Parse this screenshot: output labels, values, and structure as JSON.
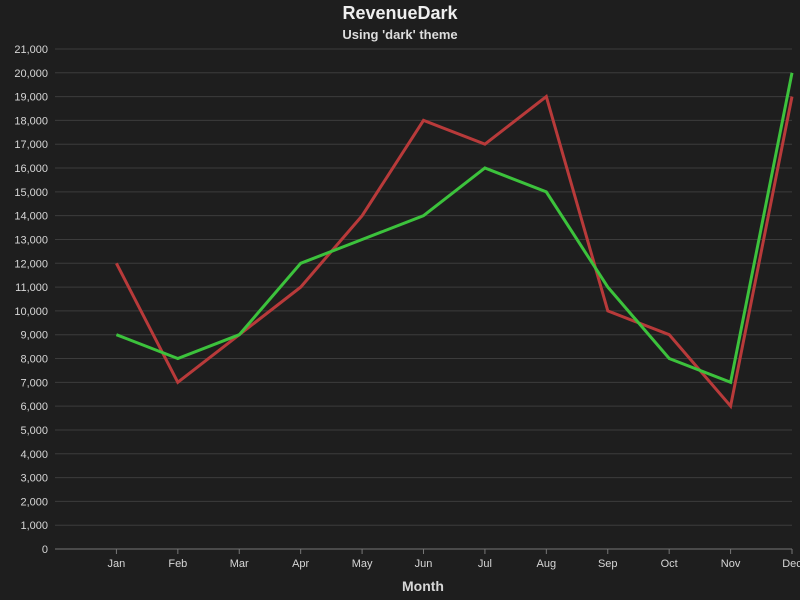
{
  "chart_data": {
    "type": "line",
    "title": "RevenueDark",
    "subtitle": "Using 'dark' theme",
    "xlabel": "Month",
    "ylabel": "",
    "categories": [
      "Jan",
      "Feb",
      "Mar",
      "Apr",
      "May",
      "Jun",
      "Jul",
      "Aug",
      "Sep",
      "Oct",
      "Nov",
      "Dec"
    ],
    "ylim": [
      0,
      21000
    ],
    "yticks": [
      "0",
      "1,000",
      "2,000",
      "3,000",
      "4,000",
      "5,000",
      "6,000",
      "7,000",
      "8,000",
      "9,000",
      "10,000",
      "11,000",
      "12,000",
      "13,000",
      "14,000",
      "15,000",
      "16,000",
      "17,000",
      "18,000",
      "19,000",
      "20,000",
      "21,000"
    ],
    "grid": true,
    "series": [
      {
        "color": "#b83a3a",
        "values": [
          12000,
          7000,
          9000,
          11000,
          14000,
          18000,
          17000,
          19000,
          10000,
          9000,
          6000,
          19000
        ]
      },
      {
        "color": "#3cc23c",
        "values": [
          9000,
          8000,
          9000,
          12000,
          13000,
          14000,
          16000,
          15000,
          11000,
          8000,
          7000,
          20000
        ]
      }
    ]
  }
}
